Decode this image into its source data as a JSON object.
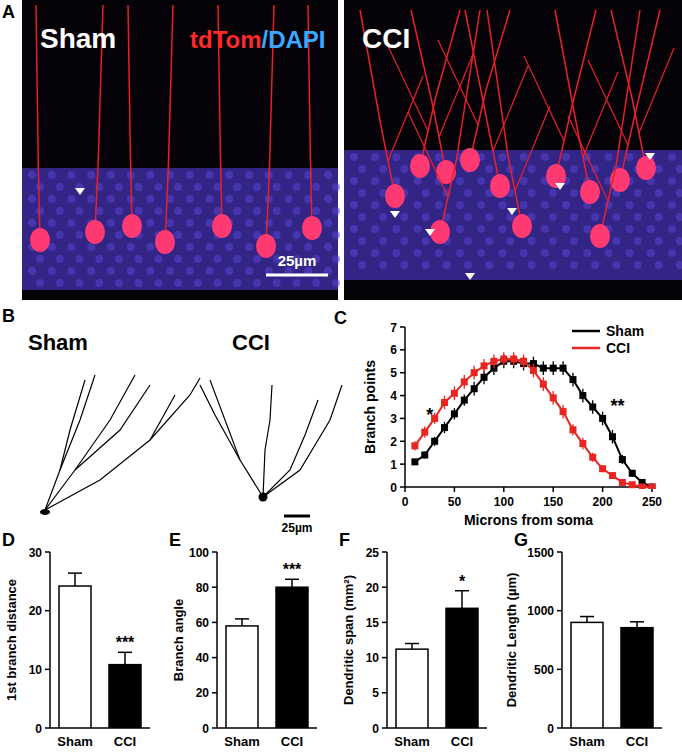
{
  "image_panel": {
    "label": "A",
    "images": [
      {
        "title": "Sham"
      },
      {
        "title": "CCI"
      }
    ],
    "stain_labels": [
      {
        "text": "tdTom",
        "color": "#ff2a2a"
      },
      {
        "text": "/DAPI",
        "color": "#3aa8ff"
      }
    ],
    "scale_bar": "25µm"
  },
  "tracing_panel": {
    "label": "B",
    "tracings": [
      {
        "title": "Sham"
      },
      {
        "title": "CCI"
      }
    ],
    "scale_bar": "25µm"
  },
  "chart_data": [
    {
      "type": "line",
      "title": "C",
      "x": [
        10,
        20,
        30,
        40,
        50,
        60,
        70,
        80,
        90,
        100,
        110,
        120,
        130,
        140,
        150,
        160,
        170,
        180,
        190,
        200,
        210,
        220,
        230,
        240,
        250
      ],
      "series": [
        {
          "name": "Sham",
          "color": "#000000",
          "marker": "square",
          "values": [
            1.1,
            1.4,
            2.0,
            2.6,
            3.2,
            3.8,
            4.3,
            4.8,
            5.2,
            5.5,
            5.5,
            5.4,
            5.4,
            5.2,
            5.2,
            5.2,
            4.7,
            4.0,
            3.5,
            3.0,
            2.2,
            1.2,
            0.6,
            0.2,
            0.0
          ],
          "errors": [
            0.1,
            0.15,
            0.2,
            0.25,
            0.25,
            0.25,
            0.3,
            0.3,
            0.3,
            0.3,
            0.3,
            0.3,
            0.3,
            0.3,
            0.3,
            0.3,
            0.3,
            0.3,
            0.3,
            0.3,
            0.3,
            0.2,
            0.15,
            0.1,
            0.05
          ]
        },
        {
          "name": "CCI",
          "color": "#e8261f",
          "marker": "square",
          "values": [
            1.8,
            2.4,
            3.0,
            3.7,
            4.1,
            4.6,
            5.0,
            5.3,
            5.5,
            5.6,
            5.6,
            5.5,
            5.1,
            4.5,
            3.9,
            3.3,
            2.5,
            1.9,
            1.3,
            0.8,
            0.5,
            0.2,
            0.1,
            0.0,
            0.0
          ],
          "errors": [
            0.2,
            0.25,
            0.25,
            0.3,
            0.3,
            0.3,
            0.3,
            0.3,
            0.3,
            0.3,
            0.3,
            0.3,
            0.3,
            0.3,
            0.3,
            0.3,
            0.25,
            0.25,
            0.2,
            0.15,
            0.1,
            0.1,
            0.05,
            0.05,
            0.05
          ]
        }
      ],
      "xlim": [
        0,
        250
      ],
      "xticks": [
        0,
        50,
        100,
        150,
        200,
        250
      ],
      "ylim": [
        0,
        7
      ],
      "yticks": [
        0,
        1,
        2,
        3,
        4,
        5,
        6,
        7
      ],
      "x_label": "Microns from soma",
      "y_label": "Branch points",
      "legend": "top-right",
      "annotations": [
        {
          "text": "*",
          "x": 25,
          "y": 2.9
        },
        {
          "text": "**",
          "x": 215,
          "y": 3.3
        }
      ]
    },
    {
      "type": "bar",
      "title": "D",
      "categories": [
        "Sham",
        "CCI"
      ],
      "values": [
        24.2,
        10.8
      ],
      "errors": [
        2.2,
        2.1
      ],
      "colors": [
        "#ffffff",
        "#000000"
      ],
      "ylim": [
        0,
        30
      ],
      "yticks": [
        0,
        10,
        20,
        30
      ],
      "y_label": "1st branch distance",
      "annotations": [
        {
          "text": "***",
          "index": 1
        }
      ]
    },
    {
      "type": "bar",
      "title": "E",
      "categories": [
        "Sham",
        "CCI"
      ],
      "values": [
        58,
        80
      ],
      "errors": [
        4,
        4.5
      ],
      "colors": [
        "#ffffff",
        "#000000"
      ],
      "ylim": [
        0,
        100
      ],
      "yticks": [
        0,
        20,
        40,
        60,
        80,
        100
      ],
      "y_label": "Branch angle",
      "annotations": [
        {
          "text": "***",
          "index": 1
        }
      ]
    },
    {
      "type": "bar",
      "title": "F",
      "categories": [
        "Sham",
        "CCI"
      ],
      "values": [
        11.2,
        17.0
      ],
      "errors": [
        0.8,
        2.5
      ],
      "colors": [
        "#ffffff",
        "#000000"
      ],
      "ylim": [
        0,
        25
      ],
      "yticks": [
        0,
        5,
        10,
        15,
        20,
        25
      ],
      "y_label": "Dendritic span (mm²)",
      "annotations": [
        {
          "text": "*",
          "index": 1
        }
      ]
    },
    {
      "type": "bar",
      "title": "G",
      "categories": [
        "Sham",
        "CCI"
      ],
      "values": [
        900,
        855
      ],
      "errors": [
        50,
        50
      ],
      "colors": [
        "#ffffff",
        "#000000"
      ],
      "ylim": [
        0,
        1500
      ],
      "yticks": [
        0,
        500,
        1000,
        1500
      ],
      "y_label": "Dendritic Length (µm)"
    }
  ]
}
